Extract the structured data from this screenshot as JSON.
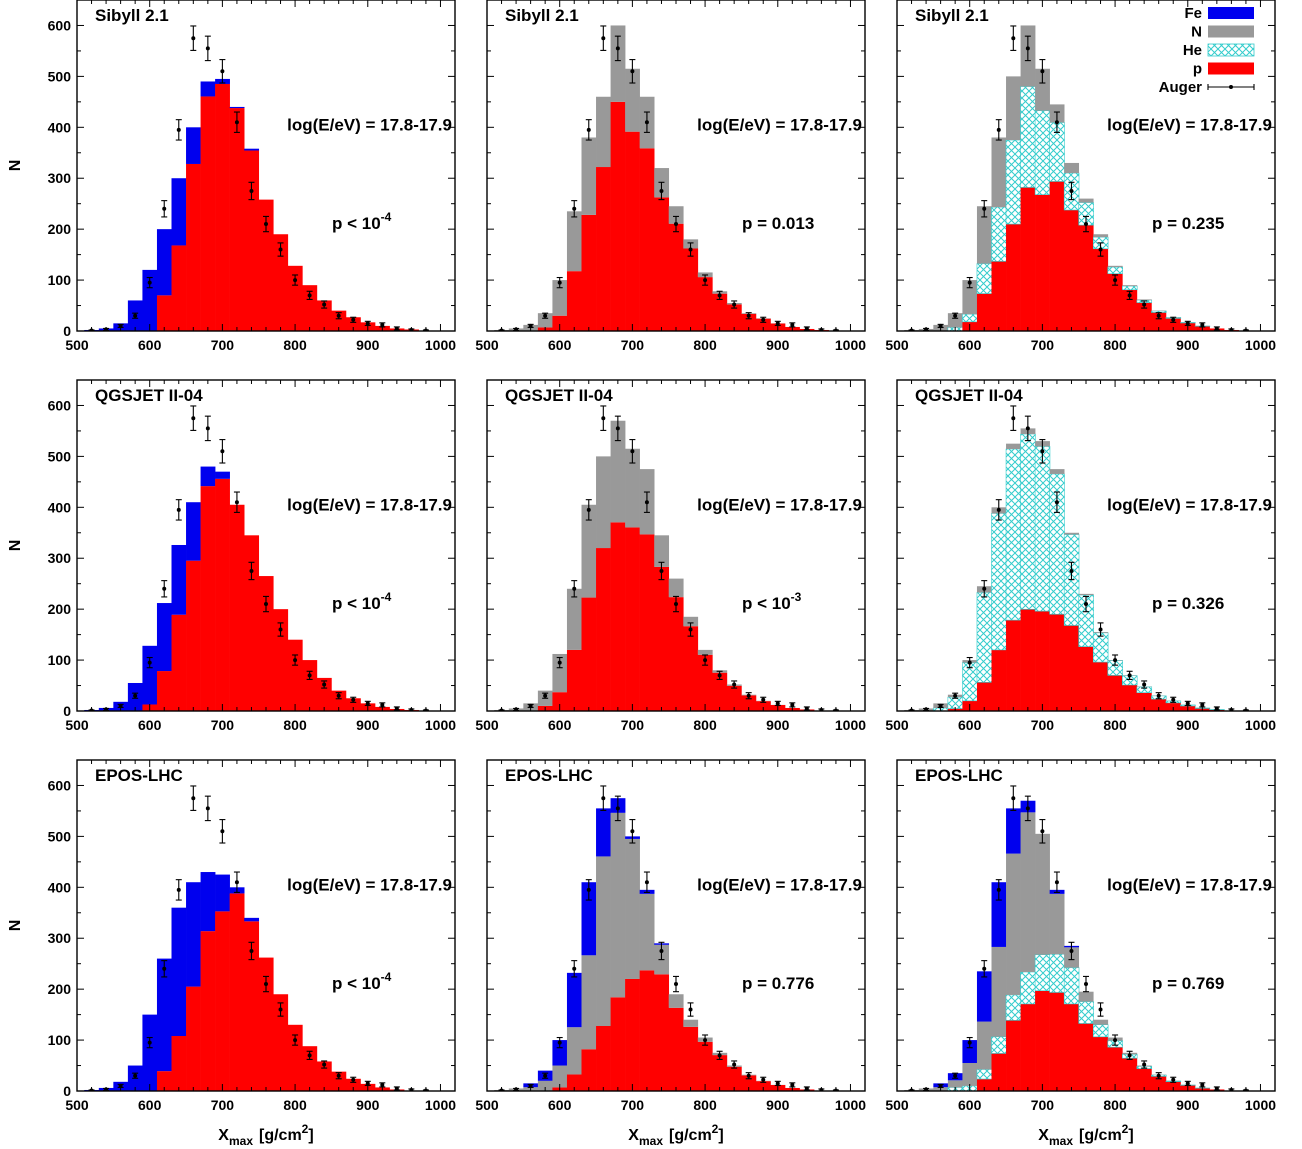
{
  "axis": {
    "xlabel_main": "X",
    "xlabel_sub": "max",
    "xlabel_units": "[g/cm",
    "xlabel_units_sup": "2",
    "xlabel_units_close": "]",
    "ylabel": "N",
    "xticks": [
      "500",
      "600",
      "700",
      "800",
      "900",
      "1000"
    ],
    "yticks": [
      "0",
      "100",
      "200",
      "300",
      "400",
      "500",
      "600"
    ]
  },
  "legend": {
    "entries": [
      {
        "label": "Fe",
        "color": "#0000ee",
        "style": "solid"
      },
      {
        "label": "N",
        "color": "#999999",
        "style": "solid"
      },
      {
        "label": "He",
        "color": "#33cccc",
        "style": "hatch"
      },
      {
        "label": "p",
        "color": "#ff0000",
        "style": "solid"
      },
      {
        "label": "Auger",
        "color": "#000000",
        "style": "errorbar"
      }
    ]
  },
  "chart_data": {
    "type": "bar",
    "subtype": "stacked-histogram",
    "grid": false,
    "legend_position": "top-right of the upper-right panel",
    "xlim": [
      500,
      1020
    ],
    "ylim": [
      0,
      650
    ],
    "bin_edges": [
      510,
      530,
      550,
      570,
      590,
      610,
      630,
      650,
      670,
      690,
      710,
      730,
      750,
      770,
      790,
      810,
      830,
      850,
      870,
      890,
      910,
      930,
      950,
      970,
      990
    ],
    "energy_label": "log(E/eV) = 17.8-17.9",
    "colors": {
      "Fe": "#0000ee",
      "N": "#999999",
      "He": "#33cccc",
      "p": "#ff0000"
    },
    "auger": {
      "x": [
        520,
        540,
        560,
        580,
        600,
        620,
        640,
        660,
        680,
        700,
        720,
        740,
        760,
        780,
        800,
        820,
        840,
        860,
        880,
        900,
        920,
        940,
        960,
        980
      ],
      "y": [
        1,
        3,
        10,
        30,
        95,
        240,
        395,
        575,
        555,
        510,
        410,
        275,
        210,
        160,
        100,
        70,
        52,
        30,
        22,
        15,
        12,
        5,
        2,
        1
      ],
      "err": [
        1,
        2,
        3,
        5,
        10,
        16,
        20,
        24,
        24,
        23,
        20,
        17,
        15,
        13,
        10,
        8,
        7,
        6,
        5,
        4,
        4,
        3,
        2,
        1
      ]
    },
    "panels": [
      {
        "model": "Sibyll 2.1",
        "pvalue": "p < 10",
        "pvalue_sup": "-4",
        "components": [
          "p",
          "Fe"
        ],
        "fractions": {
          "p": [
            0,
            0,
            0,
            0,
            0,
            0.35,
            0.56,
            0.82,
            0.94,
            0.98,
            0.995,
            0.99,
            1,
            1,
            1,
            1,
            1,
            1,
            1,
            1,
            1,
            1,
            1,
            1
          ],
          "Fe": [
            1,
            1,
            1,
            1,
            1,
            0.65,
            0.44,
            0.18,
            0.06,
            0.02,
            0.005,
            0.01,
            0,
            0,
            0,
            0,
            0,
            0,
            0,
            0,
            0,
            0,
            0,
            0
          ]
        },
        "totals": [
          2,
          5,
          15,
          60,
          120,
          200,
          300,
          400,
          490,
          495,
          440,
          358,
          258,
          190,
          128,
          90,
          60,
          40,
          27,
          17,
          10,
          5,
          3,
          1
        ]
      },
      {
        "model": "Sibyll 2.1",
        "pvalue": "p = 0.013",
        "pvalue_sup": "",
        "components": [
          "p",
          "N"
        ],
        "fractions": {
          "p": [
            0,
            0,
            0,
            0.2,
            0.3,
            0.5,
            0.6,
            0.7,
            0.75,
            0.76,
            0.78,
            0.82,
            0.86,
            0.9,
            0.92,
            0.94,
            0.95,
            0.96,
            0.97,
            0.98,
            0.98,
            1,
            1,
            1
          ],
          "N": [
            1,
            1,
            1,
            0.8,
            0.7,
            0.5,
            0.4,
            0.3,
            0.25,
            0.24,
            0.22,
            0.18,
            0.14,
            0.1,
            0.08,
            0.06,
            0.05,
            0.04,
            0.03,
            0.02,
            0.02,
            0,
            0,
            0
          ]
        },
        "totals": [
          2,
          5,
          12,
          35,
          100,
          235,
          380,
          460,
          600,
          515,
          460,
          320,
          245,
          180,
          115,
          78,
          55,
          35,
          25,
          15,
          8,
          4,
          2,
          1
        ]
      },
      {
        "model": "Sibyll 2.1",
        "pvalue": "p = 0.235",
        "pvalue_sup": "",
        "components": [
          "p",
          "He",
          "N"
        ],
        "fractions": {
          "p": [
            0,
            0,
            0,
            0,
            0.18,
            0.3,
            0.36,
            0.42,
            0.47,
            0.52,
            0.66,
            0.72,
            0.8,
            0.85,
            0.88,
            0.9,
            0.9,
            0.91,
            0.92,
            0.93,
            0.94,
            1,
            1,
            1
          ],
          "He": [
            0,
            0,
            0,
            0.2,
            0.15,
            0.24,
            0.28,
            0.33,
            0.33,
            0.32,
            0.26,
            0.22,
            0.17,
            0.12,
            0.1,
            0.08,
            0.08,
            0.07,
            0.06,
            0.05,
            0.04,
            0,
            0,
            0
          ],
          "N": [
            1,
            1,
            1,
            0.8,
            0.67,
            0.46,
            0.36,
            0.25,
            0.2,
            0.16,
            0.08,
            0.06,
            0.03,
            0.03,
            0.02,
            0.02,
            0.02,
            0.02,
            0.02,
            0.02,
            0.02,
            0,
            0,
            0
          ]
        },
        "totals": [
          2,
          4,
          12,
          35,
          100,
          245,
          380,
          500,
          600,
          515,
          445,
          330,
          260,
          190,
          128,
          90,
          62,
          40,
          27,
          17,
          10,
          5,
          2,
          1
        ]
      },
      {
        "model": "QGSJET II-04",
        "pvalue": "p < 10",
        "pvalue_sup": "-4",
        "components": [
          "p",
          "Fe"
        ],
        "fractions": {
          "p": [
            0,
            0,
            0,
            0,
            0.1,
            0.37,
            0.58,
            0.72,
            0.92,
            0.97,
            1,
            1,
            1,
            1,
            1,
            1,
            1,
            1,
            1,
            1,
            1,
            1,
            1,
            1
          ],
          "Fe": [
            1,
            1,
            1,
            1,
            0.9,
            0.63,
            0.42,
            0.28,
            0.08,
            0.03,
            0,
            0,
            0,
            0,
            0,
            0,
            0,
            0,
            0,
            0,
            0,
            0,
            0,
            0
          ]
        },
        "totals": [
          2,
          6,
          18,
          55,
          128,
          212,
          326,
          410,
          480,
          470,
          405,
          345,
          265,
          200,
          140,
          100,
          65,
          40,
          25,
          15,
          8,
          4,
          2,
          1
        ]
      },
      {
        "model": "QGSJET II-04",
        "pvalue": "p < 10",
        "pvalue_sup": "-3",
        "components": [
          "p",
          "N"
        ],
        "fractions": {
          "p": [
            0,
            0,
            0,
            0.25,
            0.33,
            0.5,
            0.55,
            0.64,
            0.65,
            0.7,
            0.73,
            0.82,
            0.86,
            0.9,
            0.92,
            0.94,
            0.95,
            0.96,
            0.97,
            0.98,
            0.98,
            1,
            1,
            1
          ],
          "N": [
            1,
            1,
            1,
            0.75,
            0.67,
            0.5,
            0.45,
            0.36,
            0.35,
            0.3,
            0.27,
            0.18,
            0.14,
            0.1,
            0.08,
            0.06,
            0.05,
            0.04,
            0.03,
            0.02,
            0.02,
            0,
            0,
            0
          ]
        },
        "totals": [
          2,
          5,
          15,
          40,
          112,
          240,
          405,
          500,
          570,
          515,
          475,
          345,
          260,
          185,
          120,
          80,
          52,
          32,
          20,
          12,
          6,
          3,
          1,
          1
        ]
      },
      {
        "model": "QGSJET II-04",
        "pvalue": "p = 0.326",
        "pvalue_sup": "",
        "components": [
          "p",
          "He",
          "N"
        ],
        "fractions": {
          "p": [
            0,
            0,
            0,
            0.15,
            0.2,
            0.23,
            0.3,
            0.34,
            0.36,
            0.37,
            0.4,
            0.48,
            0.55,
            0.62,
            0.7,
            0.73,
            0.75,
            0.78,
            0.8,
            0.82,
            0.85,
            0.9,
            1,
            1
          ],
          "He": [
            0,
            0,
            0.4,
            0.7,
            0.75,
            0.72,
            0.67,
            0.64,
            0.62,
            0.61,
            0.58,
            0.51,
            0.44,
            0.37,
            0.29,
            0.26,
            0.24,
            0.21,
            0.19,
            0.17,
            0.14,
            0.1,
            0,
            0
          ],
          "N": [
            1,
            1,
            0.6,
            0.15,
            0.05,
            0.05,
            0.03,
            0.02,
            0.02,
            0.02,
            0.02,
            0.01,
            0.01,
            0.01,
            0.01,
            0.01,
            0.01,
            0.01,
            0.01,
            0.01,
            0.01,
            0,
            0,
            0
          ]
        },
        "totals": [
          2,
          5,
          15,
          32,
          100,
          245,
          400,
          525,
          555,
          530,
          475,
          350,
          230,
          155,
          100,
          70,
          48,
          30,
          20,
          12,
          6,
          3,
          1,
          1
        ]
      },
      {
        "model": "EPOS-LHC",
        "pvalue": "p < 10",
        "pvalue_sup": "-4",
        "components": [
          "p",
          "Fe"
        ],
        "fractions": {
          "p": [
            0,
            0,
            0,
            0,
            0,
            0.15,
            0.3,
            0.5,
            0.73,
            0.83,
            0.97,
            0.98,
            1,
            1,
            1,
            1,
            1,
            1,
            1,
            1,
            1,
            1,
            1,
            1
          ],
          "Fe": [
            1,
            1,
            1,
            1,
            1,
            0.85,
            0.7,
            0.5,
            0.27,
            0.17,
            0.03,
            0.02,
            0,
            0,
            0,
            0,
            0,
            0,
            0,
            0,
            0,
            0,
            0,
            0
          ]
        },
        "totals": [
          2,
          6,
          18,
          50,
          150,
          260,
          360,
          410,
          430,
          425,
          400,
          340,
          262,
          190,
          130,
          88,
          58,
          38,
          24,
          14,
          7,
          3,
          1,
          1
        ]
      },
      {
        "model": "EPOS-LHC",
        "pvalue": "p = 0.776",
        "pvalue_sup": "",
        "components": [
          "p",
          "N",
          "Fe"
        ],
        "fractions": {
          "p": [
            0,
            0,
            0,
            0,
            0.07,
            0.14,
            0.2,
            0.23,
            0.32,
            0.44,
            0.6,
            0.79,
            0.86,
            0.9,
            0.92,
            0.94,
            0.95,
            0.96,
            0.97,
            0.98,
            0.98,
            1,
            1,
            1
          ],
          "N": [
            1,
            1,
            0.5,
            0.5,
            0.43,
            0.4,
            0.45,
            0.6,
            0.63,
            0.55,
            0.38,
            0.2,
            0.14,
            0.1,
            0.08,
            0.06,
            0.05,
            0.04,
            0.03,
            0.02,
            0.02,
            0,
            0,
            0
          ],
          "Fe": [
            0,
            0,
            0.5,
            0.5,
            0.5,
            0.46,
            0.35,
            0.17,
            0.05,
            0.01,
            0.02,
            0.01,
            0,
            0,
            0,
            0,
            0,
            0,
            0,
            0,
            0,
            0,
            0,
            0
          ]
        },
        "totals": [
          2,
          5,
          15,
          40,
          100,
          232,
          410,
          555,
          575,
          500,
          395,
          290,
          190,
          140,
          105,
          75,
          50,
          32,
          20,
          12,
          6,
          3,
          1,
          1
        ]
      },
      {
        "model": "EPOS-LHC",
        "pvalue": "p = 0.769",
        "pvalue_sup": "",
        "components": [
          "p",
          "He",
          "N",
          "Fe"
        ],
        "fractions": {
          "p": [
            0,
            0,
            0,
            0,
            0,
            0.1,
            0.18,
            0.25,
            0.3,
            0.39,
            0.49,
            0.6,
            0.68,
            0.76,
            0.82,
            0.86,
            0.88,
            0.9,
            0.92,
            0.93,
            0.94,
            1,
            1,
            1
          ],
          "He": [
            0,
            0,
            0,
            0.2,
            0.1,
            0.08,
            0.08,
            0.09,
            0.11,
            0.14,
            0.19,
            0.25,
            0.22,
            0.17,
            0.12,
            0.1,
            0.09,
            0.08,
            0.06,
            0.05,
            0.04,
            0,
            0,
            0
          ],
          "N": [
            1,
            1,
            0.5,
            0.4,
            0.45,
            0.4,
            0.43,
            0.5,
            0.55,
            0.47,
            0.3,
            0.14,
            0.1,
            0.07,
            0.06,
            0.04,
            0.03,
            0.02,
            0.02,
            0.02,
            0.02,
            0,
            0,
            0
          ],
          "Fe": [
            0,
            0,
            0.5,
            0.4,
            0.45,
            0.42,
            0.31,
            0.16,
            0.04,
            0,
            0.02,
            0.01,
            0,
            0,
            0,
            0,
            0,
            0,
            0,
            0,
            0,
            0,
            0,
            0
          ]
        },
        "totals": [
          2,
          5,
          15,
          35,
          100,
          235,
          410,
          555,
          570,
          505,
          395,
          285,
          195,
          140,
          105,
          75,
          50,
          32,
          20,
          12,
          6,
          3,
          1,
          1
        ]
      }
    ]
  }
}
